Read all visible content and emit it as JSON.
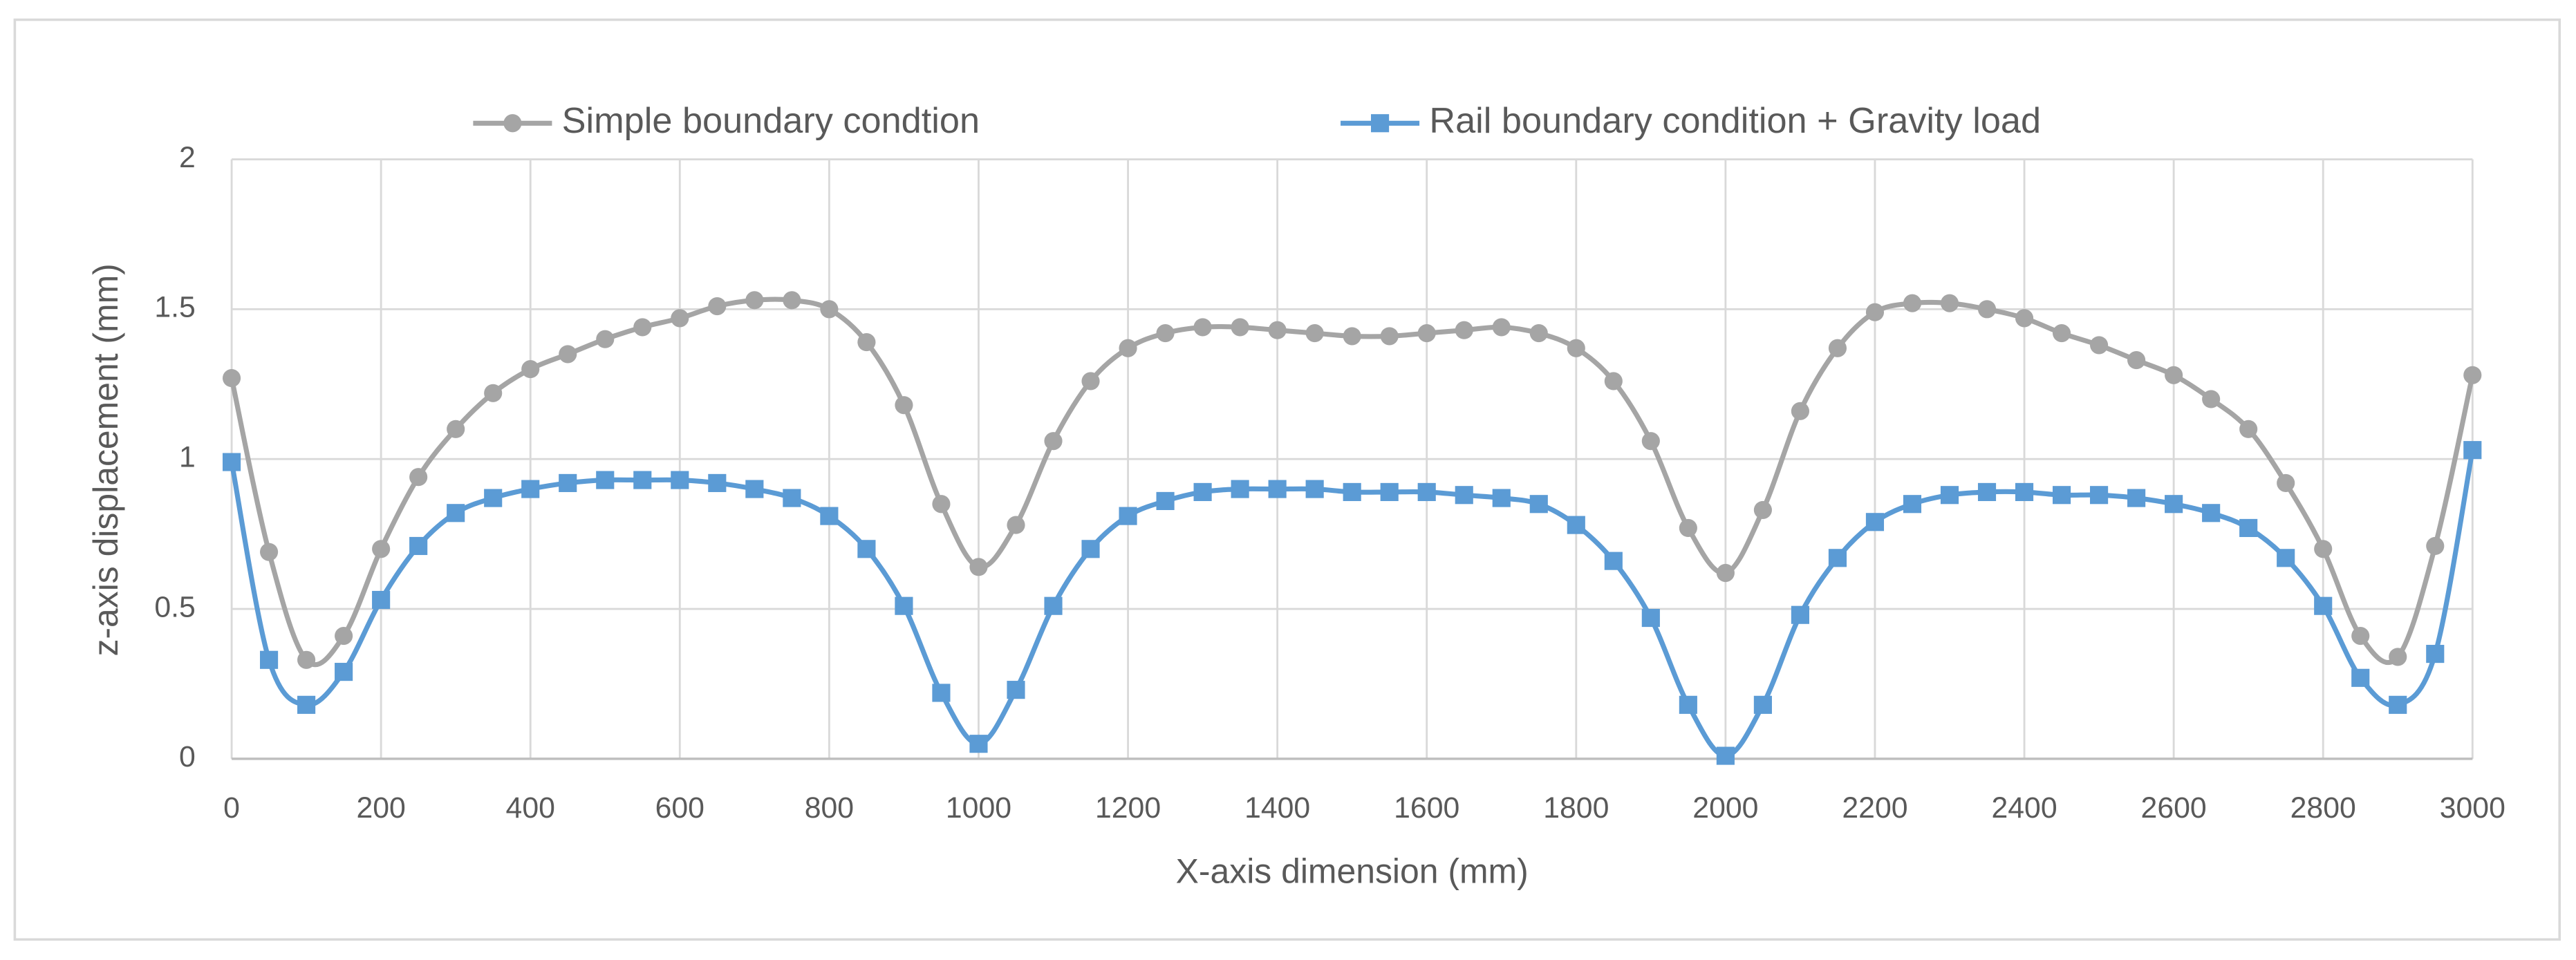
{
  "chart_data": {
    "type": "line",
    "xlabel": "X-axis dimension (mm)",
    "ylabel": "z-axis displacement (mm)",
    "x": [
      0,
      50,
      100,
      150,
      200,
      250,
      300,
      350,
      400,
      450,
      500,
      550,
      600,
      650,
      700,
      750,
      800,
      850,
      900,
      950,
      1000,
      1050,
      1100,
      1150,
      1200,
      1250,
      1300,
      1350,
      1400,
      1450,
      1500,
      1550,
      1600,
      1650,
      1700,
      1750,
      1800,
      1850,
      1900,
      1950,
      2000,
      2050,
      2100,
      2150,
      2200,
      2250,
      2300,
      2350,
      2400,
      2450,
      2500,
      2550,
      2600,
      2650,
      2700,
      2750,
      2800,
      2850,
      2900,
      2950,
      3000
    ],
    "series": [
      {
        "name": "Simple boundary condtion",
        "color": "#a5a5a5",
        "marker": "circle",
        "values": [
          1.27,
          0.69,
          0.33,
          0.41,
          0.7,
          0.94,
          1.1,
          1.22,
          1.3,
          1.35,
          1.4,
          1.44,
          1.47,
          1.51,
          1.53,
          1.53,
          1.5,
          1.39,
          1.18,
          0.85,
          0.64,
          0.78,
          1.06,
          1.26,
          1.37,
          1.42,
          1.44,
          1.44,
          1.43,
          1.42,
          1.41,
          1.41,
          1.42,
          1.43,
          1.44,
          1.42,
          1.37,
          1.26,
          1.06,
          0.77,
          0.62,
          0.83,
          1.16,
          1.37,
          1.49,
          1.52,
          1.52,
          1.5,
          1.47,
          1.42,
          1.38,
          1.33,
          1.28,
          1.2,
          1.1,
          0.92,
          0.7,
          0.41,
          0.34,
          0.71,
          1.28
        ]
      },
      {
        "name": "Rail boundary condition + Gravity load",
        "color": "#5b9bd5",
        "marker": "square",
        "values": [
          0.99,
          0.33,
          0.18,
          0.29,
          0.53,
          0.71,
          0.82,
          0.87,
          0.9,
          0.92,
          0.93,
          0.93,
          0.93,
          0.92,
          0.9,
          0.87,
          0.81,
          0.7,
          0.51,
          0.22,
          0.05,
          0.23,
          0.51,
          0.7,
          0.81,
          0.86,
          0.89,
          0.9,
          0.9,
          0.9,
          0.89,
          0.89,
          0.89,
          0.88,
          0.87,
          0.85,
          0.78,
          0.66,
          0.47,
          0.18,
          0.01,
          0.18,
          0.48,
          0.67,
          0.79,
          0.85,
          0.88,
          0.89,
          0.89,
          0.88,
          0.88,
          0.87,
          0.85,
          0.82,
          0.77,
          0.67,
          0.51,
          0.27,
          0.18,
          0.35,
          1.03
        ]
      }
    ],
    "xlim": [
      0,
      3000
    ],
    "xticks": [
      0,
      200,
      400,
      600,
      800,
      1000,
      1200,
      1400,
      1600,
      1800,
      2000,
      2200,
      2400,
      2600,
      2800,
      3000
    ],
    "ylim": [
      0,
      2
    ],
    "yticks": [
      0,
      0.5,
      1,
      1.5,
      2
    ],
    "grid": true,
    "legend": "top",
    "smooth": true
  }
}
